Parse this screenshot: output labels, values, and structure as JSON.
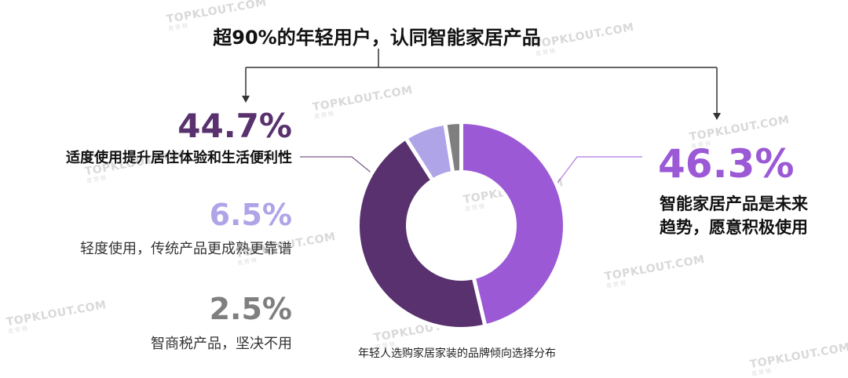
{
  "title": "超90%的年轻用户，认同智能家居产品",
  "watermark": {
    "text": "TOPKLOUT.COM",
    "subtext": "克劳锐"
  },
  "left_labels": [
    {
      "value": "44.7%",
      "desc": "适度使用提升居住体验和生活便利性",
      "color": "#58316e"
    },
    {
      "value": "6.5%",
      "desc": "轻度使用，传统产品更成熟更靠谱",
      "color": "#b0a4e8"
    },
    {
      "value": "2.5%",
      "desc": "智商税产品，坚决不用",
      "color": "#7f7f7f"
    }
  ],
  "right_label": {
    "value": "46.3%",
    "desc_line1": "智能家居产品是未来",
    "desc_line2": "趋势，愿意积极使用",
    "color": "#9b59d6"
  },
  "footnote": "年轻人选购家居家装的品牌倾向选择分布",
  "chart_data": {
    "type": "pie",
    "variant": "donut",
    "title": "超90%的年轻用户，认同智能家居产品",
    "caption": "年轻人选购家居家装的品牌倾向选择分布",
    "slices": [
      {
        "label": "智能家居产品是未来趋势，愿意积极使用",
        "value": 46.3,
        "color": "#9b59d6"
      },
      {
        "label": "适度使用提升居住体验和生活便利性",
        "value": 44.7,
        "color": "#58316e"
      },
      {
        "label": "轻度使用，传统产品更成熟更靠谱",
        "value": 6.5,
        "color": "#b0a4e8"
      },
      {
        "label": "智商税产品，坚决不用",
        "value": 2.5,
        "color": "#7f7f7f"
      }
    ],
    "start_angle_deg": 0,
    "direction": "clockwise",
    "legend": "none"
  }
}
